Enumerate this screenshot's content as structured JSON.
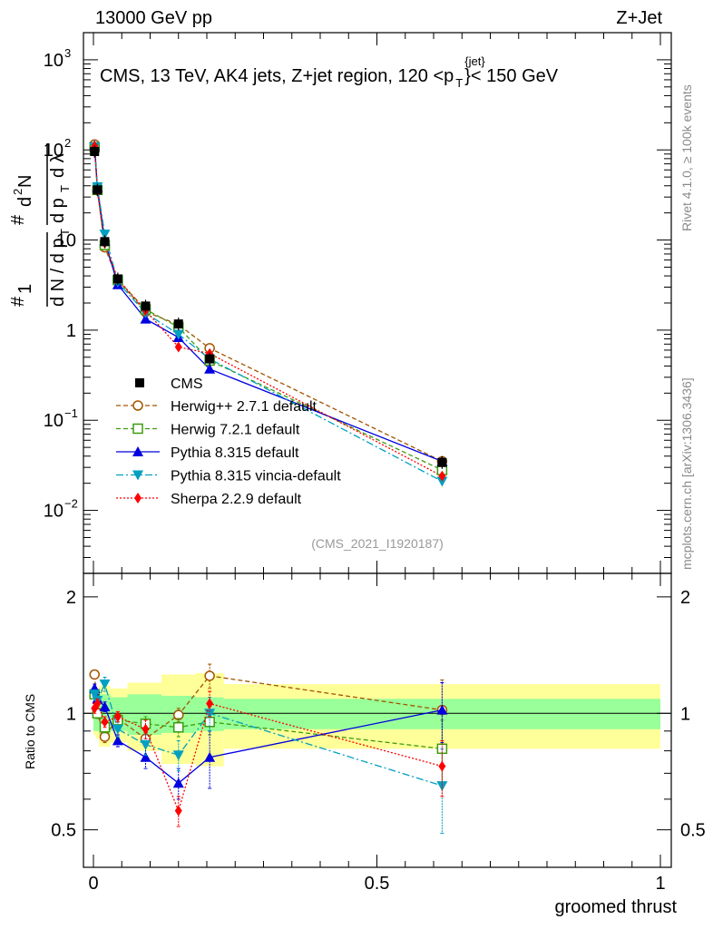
{
  "header": {
    "left": "13000 GeV pp",
    "right": "Z+Jet"
  },
  "chart_data": {
    "type": "scatter",
    "title": "CMS, 13 TeV, AK4 jets, Z+jet region, 120 <p",
    "title_sup": "{jet}",
    "title_sub": "T",
    "title_end": "}< 150 GeV",
    "analysis_id": "(CMS_2021_I1920187)",
    "side_label_top": "Rivet 4.1.0, ≥ 100k events",
    "side_label_bottom": "mcplots.cern.ch [arXiv:1306.3436]",
    "xlabel": "groomed thrust",
    "ylabel_main": "1/N dN/dp_T d²N/dp_T dλ",
    "ylabel_ratio": "Ratio to CMS",
    "xlim": [
      0,
      1
    ],
    "ylim_main": [
      0.002,
      2000
    ],
    "ylim_ratio": [
      0.4,
      2.3
    ],
    "x_ticks": [
      {
        "v": 0,
        "label": "0"
      },
      {
        "v": 0.5,
        "label": "0.5"
      },
      {
        "v": 1,
        "label": "1"
      }
    ],
    "y_ticks_main": [
      {
        "v": 0.01,
        "base": "10",
        "exp": "−2"
      },
      {
        "v": 0.1,
        "base": "10",
        "exp": "−1"
      },
      {
        "v": 1,
        "base": "1",
        "exp": ""
      },
      {
        "v": 10,
        "base": "10",
        "exp": ""
      },
      {
        "v": 100,
        "base": "10",
        "exp": "2"
      },
      {
        "v": 1000,
        "base": "10",
        "exp": "3"
      }
    ],
    "y_ticks_ratio": [
      {
        "v": 0.5,
        "label": "0.5"
      },
      {
        "v": 1,
        "label": "1"
      },
      {
        "v": 2,
        "label": "2"
      }
    ],
    "x": [
      0.002,
      0.007,
      0.02,
      0.043,
      0.092,
      0.15,
      0.205,
      0.615
    ],
    "bin_edges": [
      0,
      0.004,
      0.01,
      0.03,
      0.06,
      0.12,
      0.18,
      0.23,
      1.0
    ],
    "band_inner": [
      0.1,
      0.1,
      0.12,
      0.1,
      0.12,
      0.11,
      0.1,
      0.09
    ],
    "band_outer": [
      0.12,
      0.14,
      0.18,
      0.16,
      0.2,
      0.26,
      0.27,
      0.19
    ],
    "data": {
      "name": "CMS",
      "values": [
        96,
        36,
        9.6,
        3.7,
        1.85,
        1.17,
        0.48,
        0.034
      ]
    },
    "series": [
      {
        "name": "Herwig++ 2.7.1 default",
        "color": "#a35400",
        "marker": "open-circle",
        "dash": "5,3",
        "values": [
          115,
          36,
          8.3,
          3.6,
          1.6,
          1.15,
          0.63,
          0.035
        ],
        "ratio": [
          1.26,
          1.0,
          0.87,
          0.97,
          0.86,
          0.99,
          1.25,
          1.02
        ],
        "ratio_err": [
          0.03,
          0.03,
          0.03,
          0.03,
          0.03,
          0.04,
          0.09,
          0.2
        ]
      },
      {
        "name": "Herwig 7.2.1 default",
        "color": "#3d9c0e",
        "marker": "open-square",
        "dash": "5,3",
        "values": [
          107,
          36,
          8.8,
          3.6,
          1.7,
          1.08,
          0.46,
          0.028
        ],
        "ratio": [
          1.12,
          1.0,
          0.92,
          0.96,
          0.94,
          0.92,
          0.95,
          0.81
        ],
        "ratio_err": [
          0.03,
          0.03,
          0.03,
          0.03,
          0.04,
          0.05,
          0.07,
          0.15
        ]
      },
      {
        "name": "Pythia 8.315 default",
        "color": "#0000e0",
        "marker": "filled-triangle-up",
        "dash": "",
        "values": [
          112,
          38,
          9.8,
          3.2,
          1.33,
          0.83,
          0.37,
          0.035
        ],
        "ratio": [
          1.16,
          1.09,
          1.04,
          0.85,
          0.77,
          0.66,
          0.77,
          1.02
        ],
        "ratio_err": [
          0.03,
          0.03,
          0.03,
          0.03,
          0.05,
          0.06,
          0.13,
          0.18
        ]
      },
      {
        "name": "Pythia 8.315 vincia-default",
        "color": "#00a0c0",
        "marker": "filled-triangle-down",
        "dash": "8,3,2,3",
        "values": [
          108,
          39,
          11.6,
          3.4,
          1.55,
          0.9,
          0.48,
          0.021
        ],
        "ratio": [
          1.12,
          1.08,
          1.19,
          0.91,
          0.83,
          0.78,
          1.0,
          0.65
        ],
        "ratio_err": [
          0.03,
          0.03,
          0.05,
          0.04,
          0.05,
          0.07,
          0.1,
          0.16
        ]
      },
      {
        "name": "Sherpa 2.2.9 default",
        "color": "#ff0000",
        "marker": "filled-diamond",
        "dash": "2,2",
        "values": [
          110,
          35,
          9.2,
          3.7,
          1.65,
          0.65,
          0.55,
          0.024
        ],
        "ratio": [
          1.03,
          1.06,
          0.95,
          0.98,
          0.91,
          0.56,
          1.06,
          0.73
        ],
        "ratio_err": [
          0.03,
          0.03,
          0.03,
          0.03,
          0.05,
          0.05,
          0.08,
          0.12
        ]
      }
    ]
  }
}
